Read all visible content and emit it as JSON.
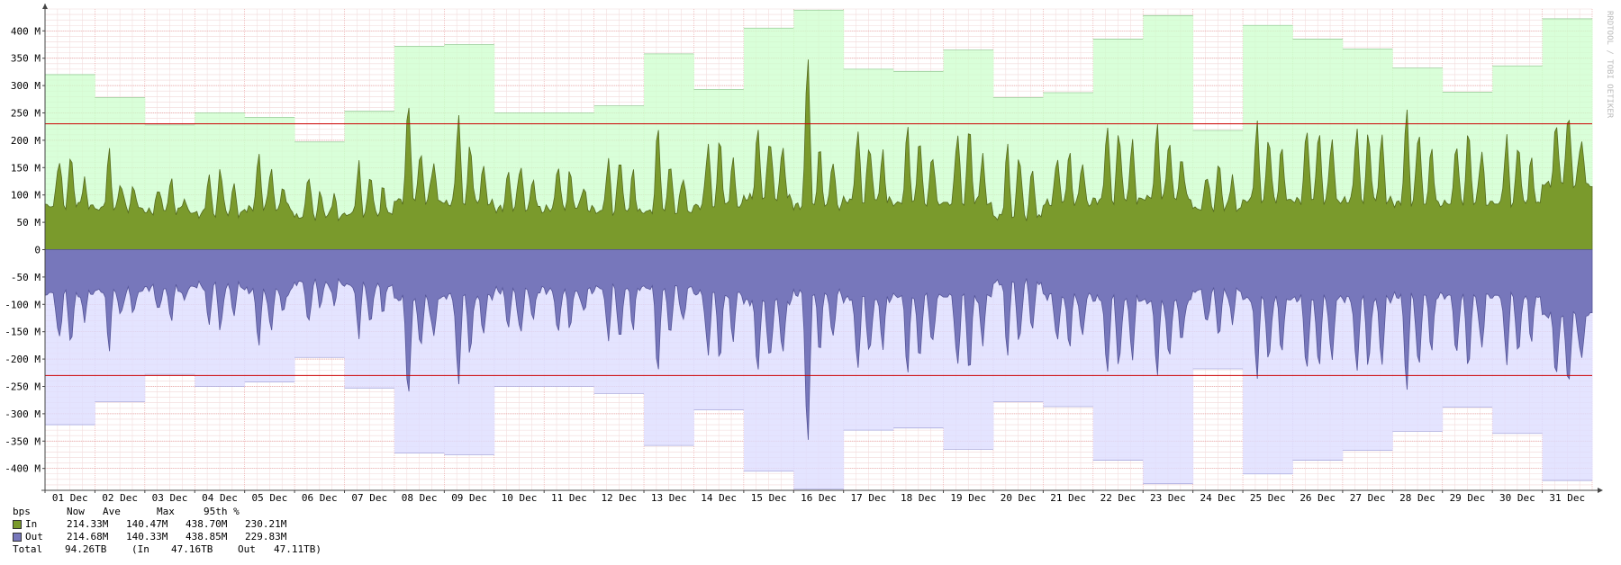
{
  "side_title": "RRDTOOL / TOBI OETIKER",
  "chart_data": {
    "type": "area",
    "title": "",
    "ylabel": "bps",
    "ylim": [
      -440,
      440
    ],
    "y_ticks": [
      {
        "v": 400,
        "label": "400 M"
      },
      {
        "v": 350,
        "label": "350 M"
      },
      {
        "v": 300,
        "label": "300 M"
      },
      {
        "v": 250,
        "label": "250 M"
      },
      {
        "v": 200,
        "label": "200 M"
      },
      {
        "v": 150,
        "label": "150 M"
      },
      {
        "v": 100,
        "label": "100 M"
      },
      {
        "v": 50,
        "label": "50 M"
      },
      {
        "v": 0,
        "label": "0"
      },
      {
        "v": -50,
        "label": "-50 M"
      },
      {
        "v": -100,
        "label": "-100 M"
      },
      {
        "v": -150,
        "label": "-150 M"
      },
      {
        "v": -200,
        "label": "-200 M"
      },
      {
        "v": -250,
        "label": "-250 M"
      },
      {
        "v": -300,
        "label": "-300 M"
      },
      {
        "v": -350,
        "label": "-350 M"
      },
      {
        "v": -400,
        "label": "-400 M"
      }
    ],
    "x_labels": [
      "01 Dec",
      "02 Dec",
      "03 Dec",
      "04 Dec",
      "05 Dec",
      "06 Dec",
      "07 Dec",
      "08 Dec",
      "09 Dec",
      "10 Dec",
      "11 Dec",
      "12 Dec",
      "13 Dec",
      "14 Dec",
      "15 Dec",
      "16 Dec",
      "17 Dec",
      "18 Dec",
      "19 Dec",
      "20 Dec",
      "21 Dec",
      "22 Dec",
      "23 Dec",
      "24 Dec",
      "25 Dec",
      "26 Dec",
      "27 Dec",
      "28 Dec",
      "29 Dec",
      "30 Dec",
      "31 Dec"
    ],
    "daily_max": [
      320,
      278,
      228,
      250,
      242,
      197,
      253,
      372,
      375,
      250,
      250,
      263,
      358,
      293,
      405,
      438,
      330,
      326,
      365,
      278,
      287,
      385,
      428,
      218,
      410,
      385,
      367,
      332,
      288,
      336,
      422
    ],
    "daily_base": [
      80,
      75,
      70,
      65,
      75,
      60,
      65,
      90,
      85,
      75,
      75,
      70,
      70,
      80,
      95,
      80,
      90,
      85,
      85,
      60,
      85,
      90,
      95,
      75,
      90,
      90,
      90,
      85,
      85,
      85,
      120
    ],
    "daily_peaks": [
      [
        180,
        185,
        130
      ],
      [
        190,
        130,
        120
      ],
      [
        120,
        135,
        95
      ],
      [
        145,
        160,
        125
      ],
      [
        185,
        160,
        120
      ],
      [
        150,
        110,
        105
      ],
      [
        165,
        150,
        120
      ],
      [
        295,
        190,
        170
      ],
      [
        265,
        205,
        160
      ],
      [
        150,
        170,
        135
      ],
      [
        165,
        150,
        120
      ],
      [
        175,
        185,
        150
      ],
      [
        245,
        170,
        145
      ],
      [
        210,
        220,
        175
      ],
      [
        235,
        225,
        200
      ],
      [
        390,
        200,
        175
      ],
      [
        235,
        210,
        185
      ],
      [
        240,
        220,
        190
      ],
      [
        235,
        245,
        180
      ],
      [
        205,
        195,
        160
      ],
      [
        180,
        190,
        170
      ],
      [
        245,
        235,
        210
      ],
      [
        240,
        215,
        180
      ],
      [
        150,
        170,
        140
      ],
      [
        245,
        225,
        200
      ],
      [
        240,
        235,
        220
      ],
      [
        240,
        230,
        225
      ],
      [
        275,
        240,
        200
      ],
      [
        210,
        235,
        195
      ],
      [
        220,
        210,
        175
      ],
      [
        245,
        270,
        215
      ]
    ],
    "series": [
      {
        "name": "In",
        "color": "#7a9a2c",
        "max_color": "#ccffcc"
      },
      {
        "name": "Out",
        "color": "#7777bb",
        "max_color": "#ddddff"
      }
    ],
    "percentile_95": 230,
    "percentile_color": "#cc0000"
  },
  "legend": {
    "headers": [
      "bps",
      "Now",
      "Ave",
      "Max",
      "95th %"
    ],
    "rows": [
      {
        "name": "In",
        "color": "#7a9a2c",
        "now": "214.33M",
        "ave": "140.47M",
        "max": "438.70M",
        "p95": "230.21M"
      },
      {
        "name": "Out",
        "color": "#7777bb",
        "now": "214.68M",
        "ave": "140.33M",
        "max": "438.85M",
        "p95": "229.83M"
      }
    ],
    "total": {
      "label": "Total",
      "value": "94.26TB",
      "in_part": "(In",
      "in_value": "47.16TB",
      "out_part": "Out",
      "out_value": "47.11TB)"
    }
  }
}
